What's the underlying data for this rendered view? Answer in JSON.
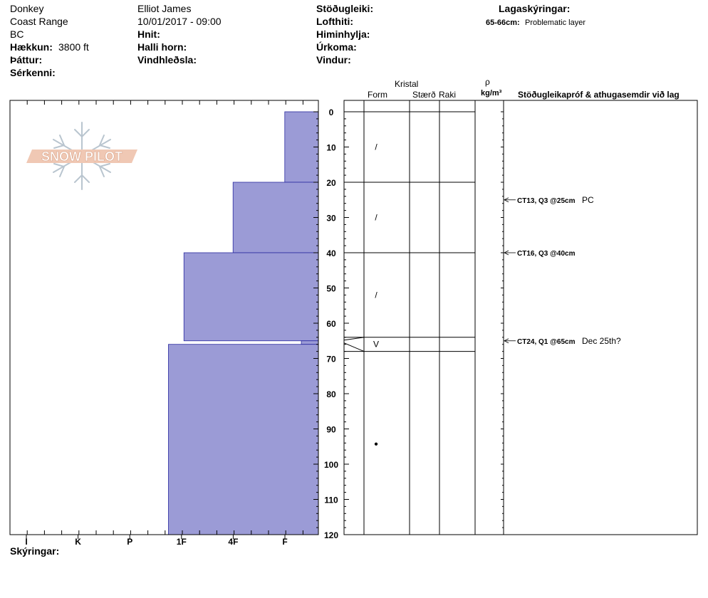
{
  "header": {
    "location": "Donkey",
    "range": "Coast Range",
    "region": "BC",
    "elevation_label": "Hækkun:",
    "elevation_value": "3800 ft",
    "aspect_label": "Þáttur:",
    "features_label": "Sérkenni:",
    "observer": "Elliot James",
    "datetime": "10/01/2017 - 09:00",
    "coords_label": "Hnit:",
    "slope_label": "Halli horn:",
    "wind_loading_label": "Vindhleðsla:",
    "stability_label": "Stöðugleiki:",
    "air_temp_label": "Lofthiti:",
    "sky_label": "Himinhylja:",
    "precip_label": "Úrkoma:",
    "wind_label": "Vindur:",
    "legend_title": "Lagaskýringar:",
    "legend_depth": "65-66cm:",
    "legend_text": "Problematic layer",
    "notes_label": "Skýringar:"
  },
  "table_headers": {
    "crystal": "Kristal",
    "form": "Form",
    "size": "Stærð",
    "moisture": "Raki",
    "rho": "ρ",
    "density_unit": "kg/m³",
    "tests": "Stöðugleikapróf & athugasemdir við lag"
  },
  "colors": {
    "hardness_fill": "#9b9bd6",
    "hardness_edge": "#2a2aa0"
  },
  "chart_data": {
    "type": "bar",
    "orientation": "horizontal",
    "ylabel": "",
    "ylim": [
      0,
      120
    ],
    "y_ticks": [
      0,
      10,
      20,
      30,
      40,
      50,
      60,
      70,
      80,
      90,
      100,
      110,
      120
    ],
    "hardness_categories": [
      "I",
      "K",
      "P",
      "1F",
      "4F",
      "F"
    ],
    "layers": [
      {
        "top": 0,
        "bottom": 20,
        "hardness": 0.65
      },
      {
        "top": 20,
        "bottom": 40,
        "hardness": 1.65
      },
      {
        "top": 40,
        "bottom": 65,
        "hardness": 2.6
      },
      {
        "top": 65,
        "bottom": 66,
        "hardness": 0.33
      },
      {
        "top": 66,
        "bottom": 120,
        "hardness": 2.9
      }
    ],
    "layer_boundaries": [
      0,
      20,
      40,
      64,
      68
    ],
    "grain_forms": [
      {
        "depth": 10,
        "symbol": "/"
      },
      {
        "depth": 30,
        "symbol": "/"
      },
      {
        "depth": 52,
        "symbol": "/"
      },
      {
        "depth": 66,
        "symbol": "V"
      },
      {
        "depth": 94,
        "symbol": "●"
      }
    ],
    "tests": [
      {
        "depth": 25,
        "result": "CT13, Q3 @25cm",
        "comment": "PC"
      },
      {
        "depth": 40,
        "result": "CT16, Q3 @40cm",
        "comment": ""
      },
      {
        "depth": 65,
        "result": "CT24, Q1 @65cm",
        "comment": "Dec 25th?"
      }
    ]
  },
  "logo": {
    "text": "SNOW PILOT"
  }
}
